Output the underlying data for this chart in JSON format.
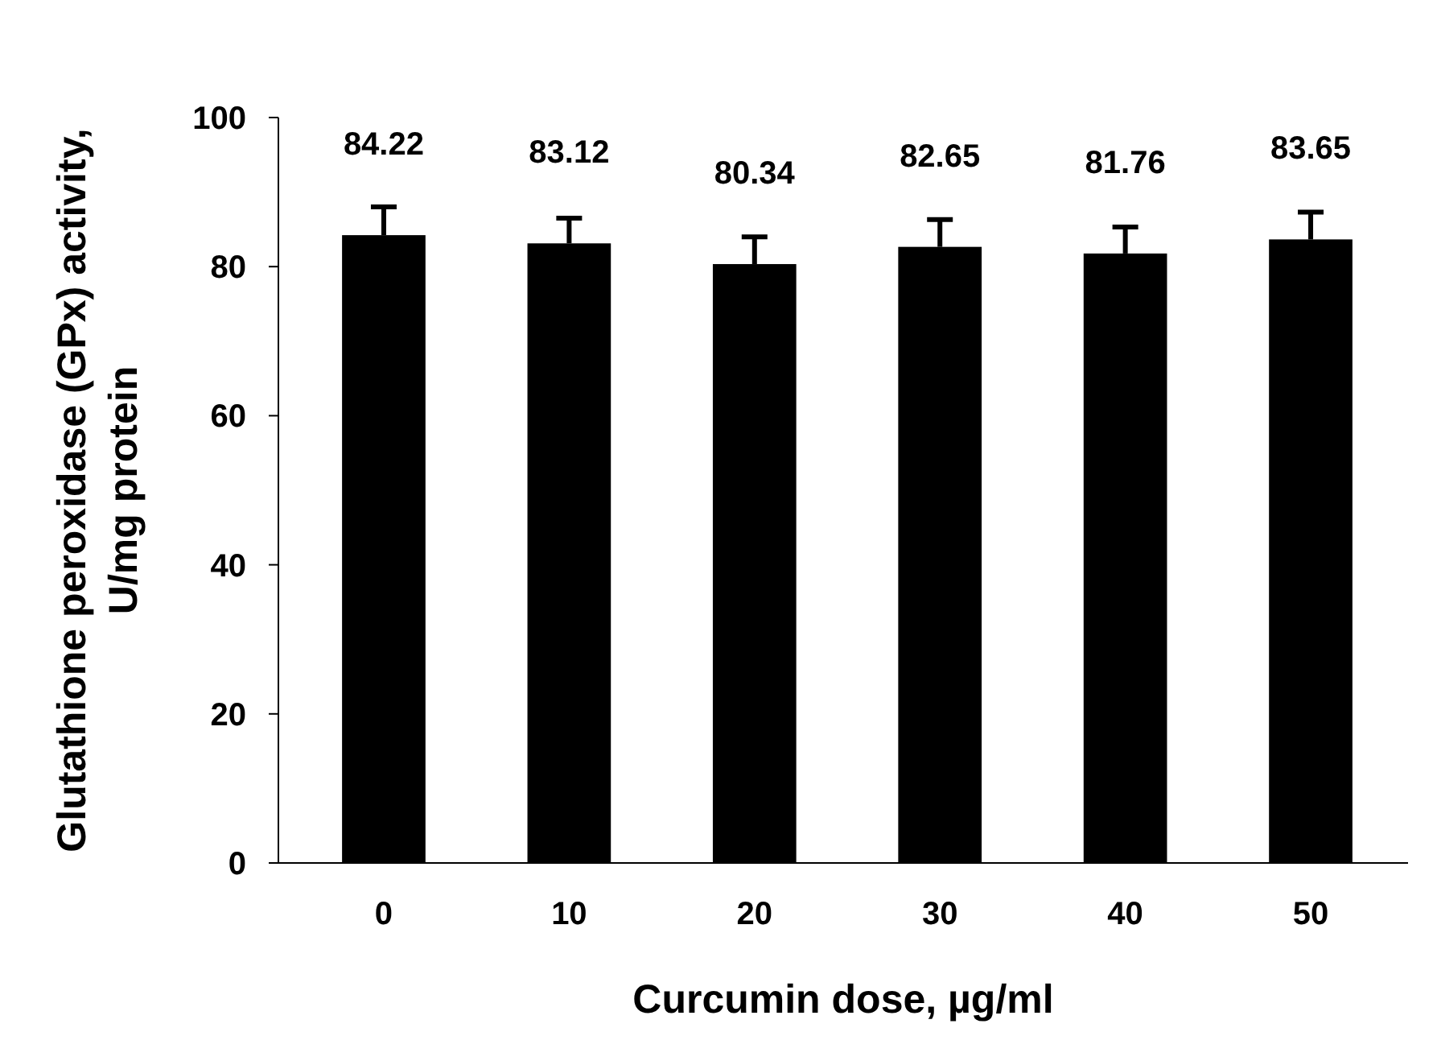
{
  "chart_data": {
    "type": "bar",
    "xlabel": "Curcumin dose, µg/ml",
    "ylabel": "Glutathione peroxidase (GPx) activity, U/mg protein",
    "categories": [
      "0",
      "10",
      "20",
      "30",
      "40",
      "50"
    ],
    "values": [
      84.22,
      83.12,
      80.34,
      82.65,
      81.76,
      83.65
    ],
    "errors": [
      [
        84.22,
        88.0
      ],
      [
        83.12,
        86.5
      ],
      [
        80.34,
        84.0
      ],
      [
        82.65,
        86.3
      ],
      [
        81.76,
        85.3
      ],
      [
        83.65,
        87.3
      ]
    ],
    "color": "#000000",
    "data_labels": true,
    "ylim": [
      0,
      100
    ],
    "yticks": [
      0,
      20,
      40,
      60,
      80,
      100
    ],
    "grid": false
  }
}
